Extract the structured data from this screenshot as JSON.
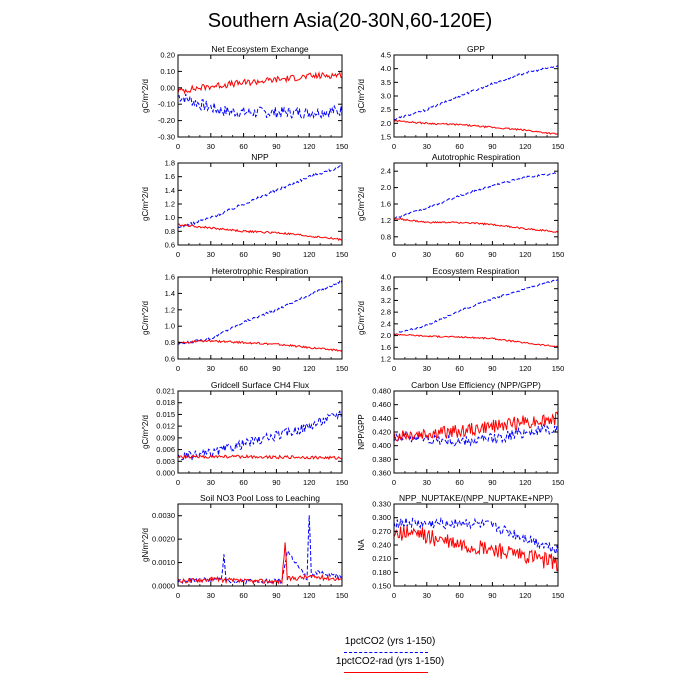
{
  "page": {
    "title": "Southern Asia(20-30N,60-120E)"
  },
  "legend": {
    "items": [
      {
        "label": "1pctCO2 (yrs 1-150)",
        "color": "#0000ff",
        "style": "dashed"
      },
      {
        "label": "1pctCO2-rad (yrs 1-150)",
        "color": "#ff0000",
        "style": "solid"
      }
    ]
  },
  "chart_data": [
    {
      "type": "line",
      "title": "Net Ecosystem Exchange",
      "ylabel": "gC/m^2/d",
      "xlim": [
        0,
        150
      ],
      "xticks": [
        "0",
        "30",
        "60",
        "90",
        "120",
        "150"
      ],
      "ylim": [
        -0.3,
        0.2
      ],
      "yticks": [
        "-0.30",
        "-0.20",
        "-0.10",
        "0.00",
        "0.10",
        "0.20"
      ],
      "series": [
        {
          "name": "1pctCO2 (yrs 1-150)",
          "x": [
            0,
            10,
            20,
            30,
            40,
            60,
            90,
            120,
            150
          ],
          "values": [
            -0.05,
            -0.07,
            -0.1,
            -0.12,
            -0.14,
            -0.15,
            -0.15,
            -0.15,
            -0.14
          ],
          "noise": 0.035
        },
        {
          "name": "1pctCO2-rad (yrs 1-150)",
          "x": [
            0,
            30,
            60,
            90,
            120,
            150
          ],
          "values": [
            -0.02,
            0.01,
            0.03,
            0.05,
            0.07,
            0.08
          ],
          "noise": 0.02
        }
      ]
    },
    {
      "type": "line",
      "title": "GPP",
      "ylabel": "gC/m^2/d",
      "xlim": [
        0,
        150
      ],
      "xticks": [
        "0",
        "30",
        "60",
        "90",
        "120",
        "150"
      ],
      "ylim": [
        1.5,
        4.5
      ],
      "yticks": [
        "1.5",
        "2.0",
        "2.5",
        "3.0",
        "3.5",
        "4.0",
        "4.5"
      ],
      "series": [
        {
          "name": "1pctCO2 (yrs 1-150)",
          "x": [
            0,
            30,
            60,
            90,
            120,
            150
          ],
          "values": [
            2.15,
            2.5,
            3.0,
            3.45,
            3.85,
            4.1
          ],
          "noise": 0.04
        },
        {
          "name": "1pctCO2-rad (yrs 1-150)",
          "x": [
            0,
            30,
            60,
            90,
            120,
            150
          ],
          "values": [
            2.1,
            2.0,
            1.95,
            1.85,
            1.75,
            1.6
          ],
          "noise": 0.03
        }
      ]
    },
    {
      "type": "line",
      "title": "NPP",
      "ylabel": "gC/m^2/d",
      "xlim": [
        0,
        150
      ],
      "xticks": [
        "0",
        "30",
        "60",
        "90",
        "120",
        "150"
      ],
      "ylim": [
        0.6,
        1.8
      ],
      "yticks": [
        "0.6",
        "0.8",
        "1.0",
        "1.2",
        "1.4",
        "1.6",
        "1.8"
      ],
      "series": [
        {
          "name": "1pctCO2 (yrs 1-150)",
          "x": [
            0,
            30,
            60,
            90,
            120,
            150
          ],
          "values": [
            0.85,
            1.0,
            1.2,
            1.4,
            1.6,
            1.75
          ],
          "noise": 0.02
        },
        {
          "name": "1pctCO2-rad (yrs 1-150)",
          "x": [
            0,
            30,
            60,
            90,
            120,
            150
          ],
          "values": [
            0.9,
            0.85,
            0.8,
            0.78,
            0.73,
            0.68
          ],
          "noise": 0.015
        }
      ]
    },
    {
      "type": "line",
      "title": "Autotrophic Respiration",
      "ylabel": "gC/m^2/d",
      "xlim": [
        0,
        150
      ],
      "xticks": [
        "0",
        "30",
        "60",
        "90",
        "120",
        "150"
      ],
      "ylim": [
        0.6,
        2.6
      ],
      "yticks": [
        "0.8",
        "1.2",
        "1.6",
        "2.0",
        "2.4"
      ],
      "series": [
        {
          "name": "1pctCO2 (yrs 1-150)",
          "x": [
            0,
            30,
            60,
            90,
            120,
            150
          ],
          "values": [
            1.25,
            1.5,
            1.8,
            2.05,
            2.25,
            2.35
          ],
          "noise": 0.025
        },
        {
          "name": "1pctCO2-rad (yrs 1-150)",
          "x": [
            0,
            30,
            60,
            90,
            120,
            150
          ],
          "values": [
            1.25,
            1.15,
            1.15,
            1.1,
            1.0,
            0.92
          ],
          "noise": 0.02
        }
      ]
    },
    {
      "type": "line",
      "title": "Heterotrophic Respiration",
      "ylabel": "gC/m^2/d",
      "xlim": [
        0,
        150
      ],
      "xticks": [
        "0",
        "30",
        "60",
        "90",
        "120",
        "150"
      ],
      "ylim": [
        0.6,
        1.6
      ],
      "yticks": [
        "0.6",
        "0.8",
        "1.0",
        "1.2",
        "1.4",
        "1.6"
      ],
      "series": [
        {
          "name": "1pctCO2 (yrs 1-150)",
          "x": [
            0,
            30,
            60,
            90,
            120,
            150
          ],
          "values": [
            0.78,
            0.85,
            1.05,
            1.2,
            1.38,
            1.55
          ],
          "noise": 0.015
        },
        {
          "name": "1pctCO2-rad (yrs 1-150)",
          "x": [
            0,
            30,
            60,
            90,
            120,
            150
          ],
          "values": [
            0.8,
            0.82,
            0.8,
            0.78,
            0.74,
            0.7
          ],
          "noise": 0.012
        }
      ]
    },
    {
      "type": "line",
      "title": "Ecosystem Respiration",
      "ylabel": "gC/m^2/d",
      "xlim": [
        0,
        150
      ],
      "xticks": [
        "0",
        "30",
        "60",
        "90",
        "120",
        "150"
      ],
      "ylim": [
        1.2,
        4.0
      ],
      "yticks": [
        "1.2",
        "1.6",
        "2.0",
        "2.4",
        "2.8",
        "3.2",
        "3.6",
        "4.0"
      ],
      "series": [
        {
          "name": "1pctCO2 (yrs 1-150)",
          "x": [
            0,
            30,
            60,
            90,
            120,
            150
          ],
          "values": [
            2.05,
            2.35,
            2.85,
            3.25,
            3.6,
            3.9
          ],
          "noise": 0.03
        },
        {
          "name": "1pctCO2-rad (yrs 1-150)",
          "x": [
            0,
            30,
            60,
            90,
            120,
            150
          ],
          "values": [
            2.05,
            1.98,
            1.95,
            1.9,
            1.75,
            1.62
          ],
          "noise": 0.025
        }
      ]
    },
    {
      "type": "line",
      "title": "Gridcell Surface CH4 Flux",
      "ylabel": "gC/m^2/d",
      "xlim": [
        0,
        150
      ],
      "xticks": [
        "0",
        "30",
        "60",
        "90",
        "120",
        "150"
      ],
      "ylim": [
        0.0,
        0.021
      ],
      "yticks": [
        "0.000",
        "0.003",
        "0.006",
        "0.009",
        "0.012",
        "0.015",
        "0.018",
        "0.021"
      ],
      "series": [
        {
          "name": "1pctCO2 (yrs 1-150)",
          "x": [
            0,
            30,
            60,
            90,
            120,
            150
          ],
          "values": [
            0.004,
            0.005,
            0.0075,
            0.0095,
            0.012,
            0.0155
          ],
          "noise": 0.0012
        },
        {
          "name": "1pctCO2-rad (yrs 1-150)",
          "x": [
            0,
            30,
            60,
            90,
            120,
            150
          ],
          "values": [
            0.004,
            0.0042,
            0.0042,
            0.0041,
            0.004,
            0.0038
          ],
          "noise": 0.0004
        }
      ]
    },
    {
      "type": "line",
      "title": "Carbon Use Efficiency (NPP/GPP)",
      "ylabel": "NPP/GPP",
      "xlim": [
        0,
        150
      ],
      "xticks": [
        "0",
        "30",
        "60",
        "90",
        "120",
        "150"
      ],
      "ylim": [
        0.36,
        0.48
      ],
      "yticks": [
        "0.360",
        "0.380",
        "0.400",
        "0.420",
        "0.440",
        "0.460",
        "0.480"
      ],
      "series": [
        {
          "name": "1pctCO2 (yrs 1-150)",
          "x": [
            0,
            30,
            60,
            90,
            120,
            150
          ],
          "values": [
            0.415,
            0.41,
            0.405,
            0.41,
            0.42,
            0.425
          ],
          "noise": 0.008
        },
        {
          "name": "1pctCO2-rad (yrs 1-150)",
          "x": [
            0,
            30,
            60,
            90,
            120,
            150
          ],
          "values": [
            0.415,
            0.418,
            0.422,
            0.428,
            0.435,
            0.44
          ],
          "noise": 0.01
        }
      ]
    },
    {
      "type": "line",
      "title": "Soil NO3 Pool Loss to Leaching",
      "ylabel": "gN/m^2/d",
      "xlim": [
        0,
        150
      ],
      "xticks": [
        "0",
        "30",
        "60",
        "90",
        "120",
        "150"
      ],
      "ylim": [
        0.0,
        0.0035
      ],
      "yticks": [
        "0.0000",
        "0.0010",
        "0.0020",
        "0.0030"
      ],
      "series": [
        {
          "name": "1pctCO2 (yrs 1-150)",
          "x": [
            0,
            40,
            42,
            44,
            50,
            95,
            100,
            118,
            120,
            122,
            130,
            150
          ],
          "values": [
            0.0002,
            0.0003,
            0.0014,
            0.0003,
            0.0002,
            0.0002,
            0.0015,
            0.0003,
            0.0031,
            0.0004,
            0.0006,
            0.0004
          ],
          "noise": 0.0001
        },
        {
          "name": "1pctCO2-rad (yrs 1-150)",
          "x": [
            0,
            30,
            60,
            95,
            98,
            100,
            120,
            150
          ],
          "values": [
            0.0002,
            0.0003,
            0.0002,
            0.0002,
            0.0019,
            0.0003,
            0.0004,
            0.0003
          ],
          "noise": 0.0001
        }
      ]
    },
    {
      "type": "line",
      "title": "NPP_NUPTAKE/(NPP_NUPTAKE+NPP)",
      "ylabel": "NA",
      "xlim": [
        0,
        150
      ],
      "xticks": [
        "0",
        "30",
        "60",
        "90",
        "120",
        "150"
      ],
      "ylim": [
        0.15,
        0.33
      ],
      "yticks": [
        "0.150",
        "0.180",
        "0.210",
        "0.240",
        "0.270",
        "0.300",
        "0.330"
      ],
      "series": [
        {
          "name": "1pctCO2 (yrs 1-150)",
          "x": [
            0,
            30,
            60,
            90,
            120,
            150
          ],
          "values": [
            0.29,
            0.285,
            0.29,
            0.28,
            0.255,
            0.23
          ],
          "noise": 0.012
        },
        {
          "name": "1pctCO2-rad (yrs 1-150)",
          "x": [
            0,
            30,
            60,
            90,
            120,
            150
          ],
          "values": [
            0.27,
            0.26,
            0.24,
            0.23,
            0.215,
            0.2
          ],
          "noise": 0.018
        }
      ]
    }
  ]
}
